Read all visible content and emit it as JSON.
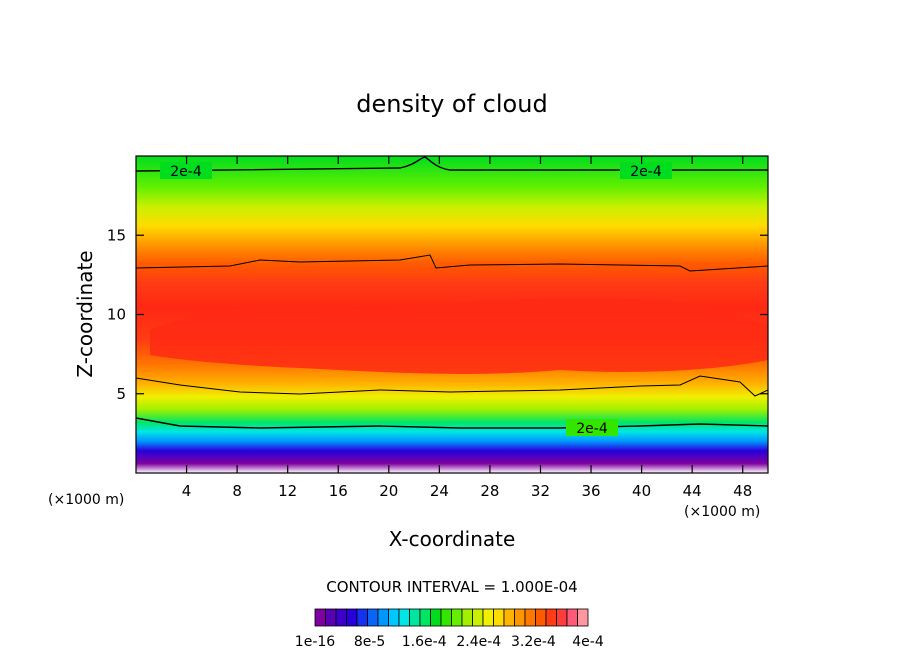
{
  "chart_data": {
    "type": "heatmap",
    "title": "density of cloud",
    "xlabel": "X-coordinate",
    "ylabel": "Z-coordinate",
    "x_unit": "(×1000 m)",
    "xlim": [
      0,
      50
    ],
    "ylim": [
      0,
      20
    ],
    "x_ticks": [
      4,
      8,
      12,
      16,
      20,
      24,
      28,
      32,
      36,
      40,
      44,
      48
    ],
    "y_ticks": [
      5,
      10,
      15
    ],
    "contour_interval_label": "CONTOUR INTERVAL = 1.000E-04",
    "contour_labels": [
      "2e-4",
      "2e-4",
      "2e-4"
    ],
    "colorbar": {
      "labels": [
        "1e-16",
        "8e-5",
        "1.6e-4",
        "2.4e-4",
        "3.2e-4",
        "4e-4"
      ],
      "colors": [
        "#7f00a0",
        "#5a00b4",
        "#3c00c8",
        "#2800dc",
        "#1432ef",
        "#0a64f5",
        "#0096ff",
        "#00c8ff",
        "#00e6e6",
        "#00e6a0",
        "#00e664",
        "#00dc1e",
        "#32e600",
        "#64f000",
        "#a0f000",
        "#c8f000",
        "#f0f000",
        "#ffdc00",
        "#ffb400",
        "#ff9600",
        "#ff7800",
        "#ff5a00",
        "#ff3c14",
        "#ff3c3c",
        "#ff5a78",
        "#ff96a0"
      ]
    }
  }
}
